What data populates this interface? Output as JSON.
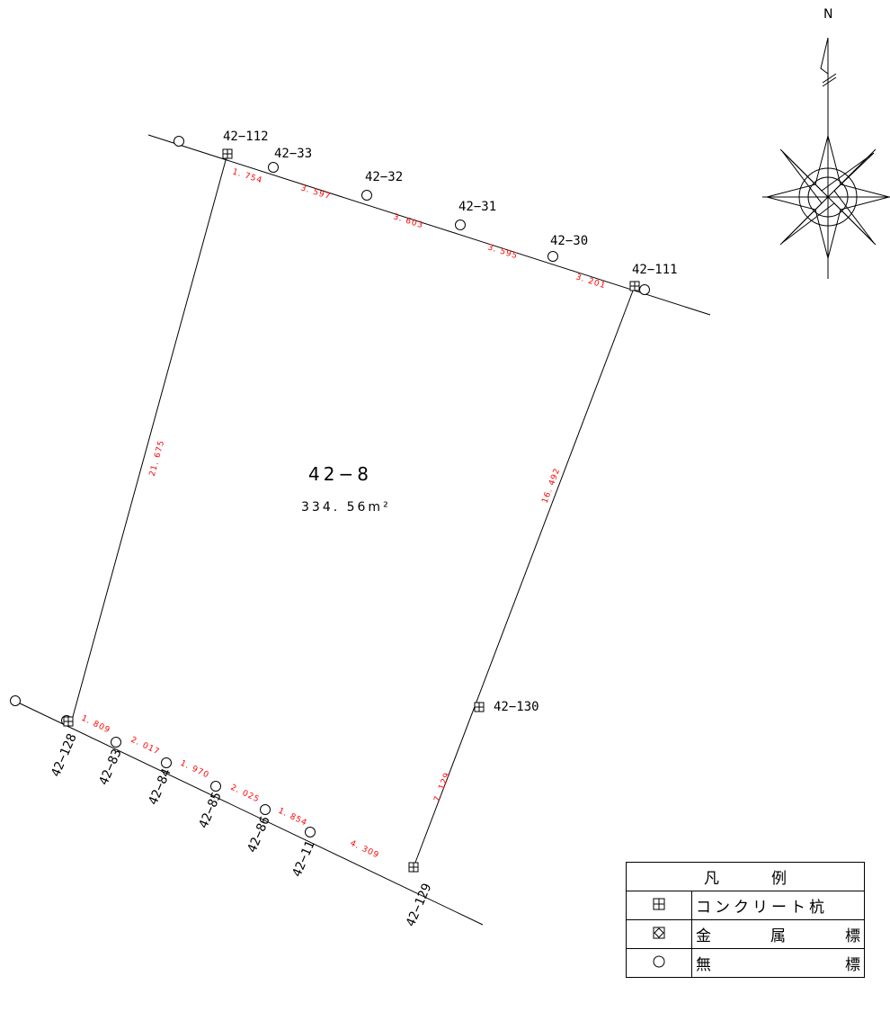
{
  "north": {
    "label": "N"
  },
  "lot": {
    "number": "42−8",
    "area": "334. 56m²"
  },
  "points": [
    {
      "id": "p-sw-ext",
      "type": "none"
    },
    {
      "id": "p-nw-ext",
      "type": "none"
    },
    {
      "id": "p112",
      "label": "42−112",
      "type": "concrete"
    },
    {
      "id": "p33",
      "label": "42−33",
      "type": "none"
    },
    {
      "id": "p32",
      "label": "42−32",
      "type": "none"
    },
    {
      "id": "p31",
      "label": "42−31",
      "type": "none"
    },
    {
      "id": "p30",
      "label": "42−30",
      "type": "none"
    },
    {
      "id": "p111",
      "label": "42−111",
      "type": "concrete"
    },
    {
      "id": "p130",
      "label": "42−130",
      "type": "concrete"
    },
    {
      "id": "p129",
      "label": "42−129",
      "type": "concrete"
    },
    {
      "id": "p128",
      "label": "42−128",
      "type": "concrete"
    },
    {
      "id": "p83",
      "label": "42−83",
      "type": "none"
    },
    {
      "id": "p84",
      "label": "42−84",
      "type": "none"
    },
    {
      "id": "p85",
      "label": "42−85",
      "type": "none"
    },
    {
      "id": "p86",
      "label": "42−86",
      "type": "none"
    },
    {
      "id": "p11",
      "label": "42−11",
      "type": "none"
    }
  ],
  "distances": [
    {
      "value": "1. 754"
    },
    {
      "value": "3. 597"
    },
    {
      "value": "3. 603"
    },
    {
      "value": "3. 595"
    },
    {
      "value": "3. 201"
    },
    {
      "value": "16. 492"
    },
    {
      "value": "7. 129"
    },
    {
      "value": "4. 309"
    },
    {
      "value": "1. 854"
    },
    {
      "value": "2. 025"
    },
    {
      "value": "1. 970"
    },
    {
      "value": "2. 017"
    },
    {
      "value": "1. 809"
    },
    {
      "value": "21. 675"
    }
  ],
  "legend": {
    "title_left": "凡",
    "title_right": "例",
    "rows": [
      {
        "symbol": "concrete-pile-symbol",
        "label": "コンクリート杭"
      },
      {
        "symbol": "metal-marker-symbol",
        "chars": [
          "金",
          "属",
          "標"
        ]
      },
      {
        "symbol": "no-marker-symbol",
        "chars": [
          "無",
          "標"
        ]
      }
    ]
  }
}
